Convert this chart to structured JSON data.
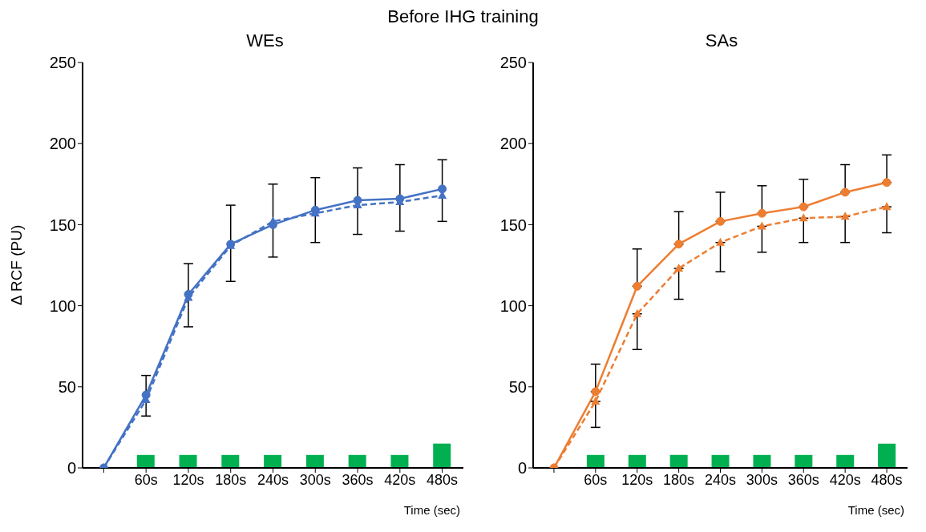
{
  "chart_data": [
    {
      "type": "line",
      "title": "WEs",
      "annotations": [
        "Before IHG training"
      ],
      "ylabel": "Δ RCF (PU)",
      "xlabel": "Time (sec)",
      "categories": [
        null,
        "60s",
        "120s",
        "180s",
        "240s",
        "300s",
        "360s",
        "420s",
        "480s"
      ],
      "ylim": [
        0,
        250
      ],
      "yticks": [
        0,
        50,
        100,
        150,
        200,
        250
      ],
      "series": [
        {
          "type": "bar",
          "color": "#00b050",
          "values": [
            null,
            8,
            8,
            8,
            8,
            8,
            8,
            8,
            15
          ]
        },
        {
          "color": "#4472c4",
          "marker": "circle",
          "line_style": "solid",
          "values": [
            0,
            45,
            107,
            138,
            150,
            159,
            165,
            166,
            172
          ],
          "errors": [
            null,
            [
              32,
              57
            ],
            [
              87,
              126
            ],
            [
              115,
              162
            ],
            [
              130,
              175
            ],
            [
              139,
              179
            ],
            [
              144,
              185
            ],
            [
              146,
              187
            ],
            [
              152,
              190
            ]
          ]
        },
        {
          "color": "#4472c4",
          "marker": "triangle",
          "line_style": "dashed",
          "values": [
            0,
            42,
            105,
            137,
            152,
            157,
            162,
            164,
            168
          ]
        }
      ]
    },
    {
      "type": "line",
      "title": "SAs",
      "xlabel": "Time (sec)",
      "categories": [
        null,
        "60s",
        "120s",
        "180s",
        "240s",
        "300s",
        "360s",
        "420s",
        "480s"
      ],
      "ylim": [
        0,
        250
      ],
      "yticks": [
        0,
        50,
        100,
        150,
        200,
        250
      ],
      "series": [
        {
          "type": "bar",
          "color": "#00b050",
          "values": [
            null,
            8,
            8,
            8,
            8,
            8,
            8,
            8,
            15
          ]
        },
        {
          "color": "#ed7d31",
          "marker": "circle",
          "line_style": "solid",
          "values": [
            0,
            47,
            112,
            138,
            152,
            157,
            161,
            170,
            176
          ],
          "errors": [
            null,
            [
              47,
              64
            ],
            [
              112,
              135
            ],
            [
              138,
              158
            ],
            [
              152,
              170
            ],
            [
              157,
              174
            ],
            [
              161,
              178
            ],
            [
              170,
              187
            ],
            [
              176,
              193
            ]
          ]
        },
        {
          "color": "#ed7d31",
          "marker": "triangle",
          "line_style": "dashed",
          "values": [
            0,
            41,
            95,
            123,
            139,
            149,
            154,
            155,
            161
          ],
          "errors": [
            null,
            [
              25,
              41
            ],
            [
              73,
              95
            ],
            [
              104,
              123
            ],
            [
              121,
              139
            ],
            [
              133,
              149
            ],
            [
              139,
              154
            ],
            [
              139,
              155
            ],
            [
              145,
              161
            ]
          ]
        }
      ]
    }
  ]
}
